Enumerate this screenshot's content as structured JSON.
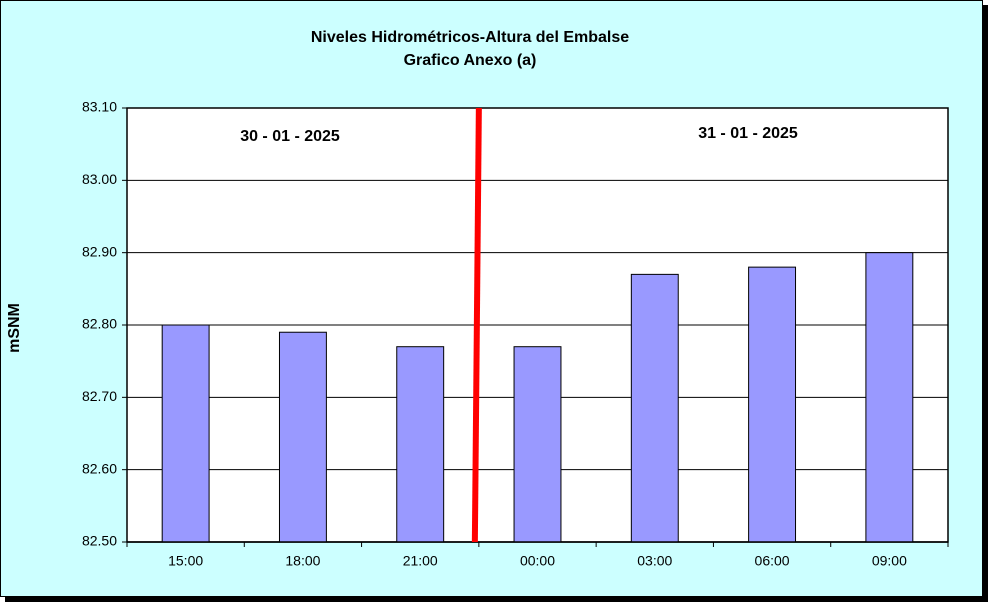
{
  "chart_data": {
    "type": "bar",
    "title": "Niveles Hidrométricos-Altura del Embalse",
    "subtitle": "Grafico Anexo (a)",
    "y_label": "mSNM",
    "annotations": [
      "30 - 01 - 2025",
      "31 - 01 - 2025"
    ],
    "categories": [
      "15:00",
      "18:00",
      "21:00",
      "00:00",
      "03:00",
      "06:00",
      "09:00"
    ],
    "values": [
      82.8,
      82.79,
      82.77,
      82.77,
      82.87,
      82.88,
      82.9
    ],
    "color": "#9999ff",
    "ylim": [
      82.5,
      83.1
    ],
    "yticks": [
      {
        "value": 82.5,
        "label": "82.50"
      },
      {
        "value": 82.6,
        "label": "82.60"
      },
      {
        "value": 82.7,
        "label": "82.70"
      },
      {
        "value": 82.8,
        "label": "82.80"
      },
      {
        "value": 82.9,
        "label": "82.90"
      },
      {
        "value": 83.0,
        "label": "83.00"
      },
      {
        "value": 83.1,
        "label": "83.10"
      }
    ],
    "grid": true
  }
}
